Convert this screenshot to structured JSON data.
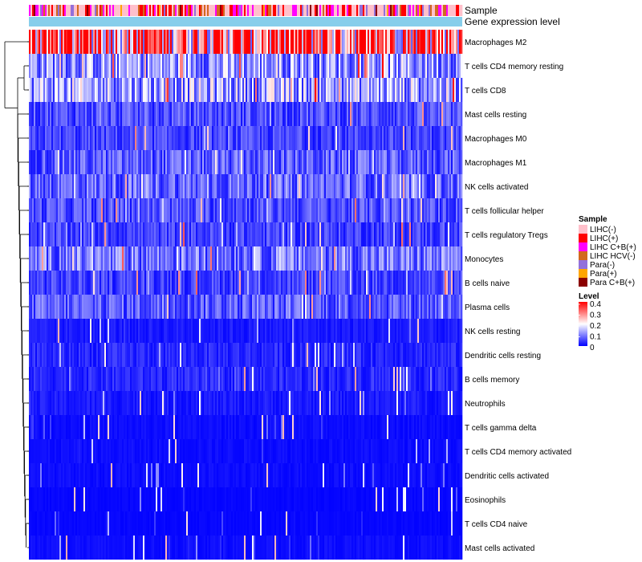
{
  "chart_data": {
    "type": "heatmap",
    "title": "",
    "annotations": {
      "top_track": "Sample",
      "second_track": "Gene expression level"
    },
    "rows": [
      {
        "label": "Macrophages M2",
        "mean": 0.33
      },
      {
        "label": "T cells CD4 memory resting",
        "mean": 0.12
      },
      {
        "label": "T cells CD8",
        "mean": 0.13
      },
      {
        "label": "Mast cells resting",
        "mean": 0.06
      },
      {
        "label": "Macrophages M0",
        "mean": 0.05
      },
      {
        "label": "Macrophages M1",
        "mean": 0.07
      },
      {
        "label": "NK cells activated",
        "mean": 0.08
      },
      {
        "label": "T cells follicular helper",
        "mean": 0.06
      },
      {
        "label": "T cells regulatory  Tregs",
        "mean": 0.05
      },
      {
        "label": "Monocytes",
        "mean": 0.09
      },
      {
        "label": "B cells naive",
        "mean": 0.05
      },
      {
        "label": "Plasma cells",
        "mean": 0.07
      },
      {
        "label": "NK cells resting",
        "mean": 0.02
      },
      {
        "label": "Dendritic cells resting",
        "mean": 0.03
      },
      {
        "label": "B cells memory",
        "mean": 0.03
      },
      {
        "label": "Neutrophils",
        "mean": 0.02
      },
      {
        "label": "T cells gamma delta",
        "mean": 0.01
      },
      {
        "label": "T cells CD4 memory activated",
        "mean": 0.01
      },
      {
        "label": "Dendritic cells activated",
        "mean": 0.01
      },
      {
        "label": "Eosinophils",
        "mean": 0.005
      },
      {
        "label": "T cells CD4 naive",
        "mean": 0.005
      },
      {
        "label": "Mast cells activated",
        "mean": 0.01
      }
    ],
    "sample_legend": {
      "title": "Sample",
      "entries": [
        {
          "label": "LIHC(-)",
          "color": "#ffc0cb"
        },
        {
          "label": "LIHC(+)",
          "color": "#ff0000"
        },
        {
          "label": "LIHC C+B(+)",
          "color": "#ff00ff"
        },
        {
          "label": "LIHC HCV(-)",
          "color": "#d2691e"
        },
        {
          "label": "Para(-)",
          "color": "#9370db"
        },
        {
          "label": "Para(+)",
          "color": "#ffa500"
        },
        {
          "label": "Para C+B(+)",
          "color": "#8b0000"
        }
      ]
    },
    "level_legend": {
      "title": "Level",
      "ticks": [
        "0.4",
        "0.3",
        "0.2",
        "0.1",
        "0"
      ],
      "range": [
        0,
        0.4
      ],
      "colors": [
        "#0000ff",
        "#ffffff",
        "#ff0000"
      ]
    },
    "gene_expression_color": "#87ceeb"
  }
}
